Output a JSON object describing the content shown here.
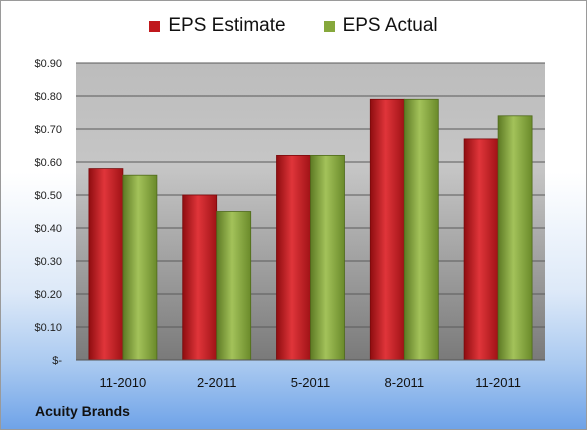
{
  "company": "Acuity Brands",
  "chart_data": {
    "type": "bar",
    "categories": [
      "11-2010",
      "2-2011",
      "5-2011",
      "8-2011",
      "11-2011"
    ],
    "series": [
      {
        "name": "EPS Estimate",
        "color": "#c0181c",
        "values": [
          0.58,
          0.5,
          0.62,
          0.79,
          0.67
        ]
      },
      {
        "name": "EPS Actual",
        "color": "#86a83c",
        "values": [
          0.56,
          0.45,
          0.62,
          0.79,
          0.74
        ]
      }
    ],
    "ylim": [
      0,
      0.9
    ],
    "yticks": [
      "$-",
      "$0.10",
      "$0.20",
      "$0.30",
      "$0.40",
      "$0.50",
      "$0.60",
      "$0.70",
      "$0.80",
      "$0.90"
    ],
    "grid": true,
    "legend_position": "top"
  }
}
